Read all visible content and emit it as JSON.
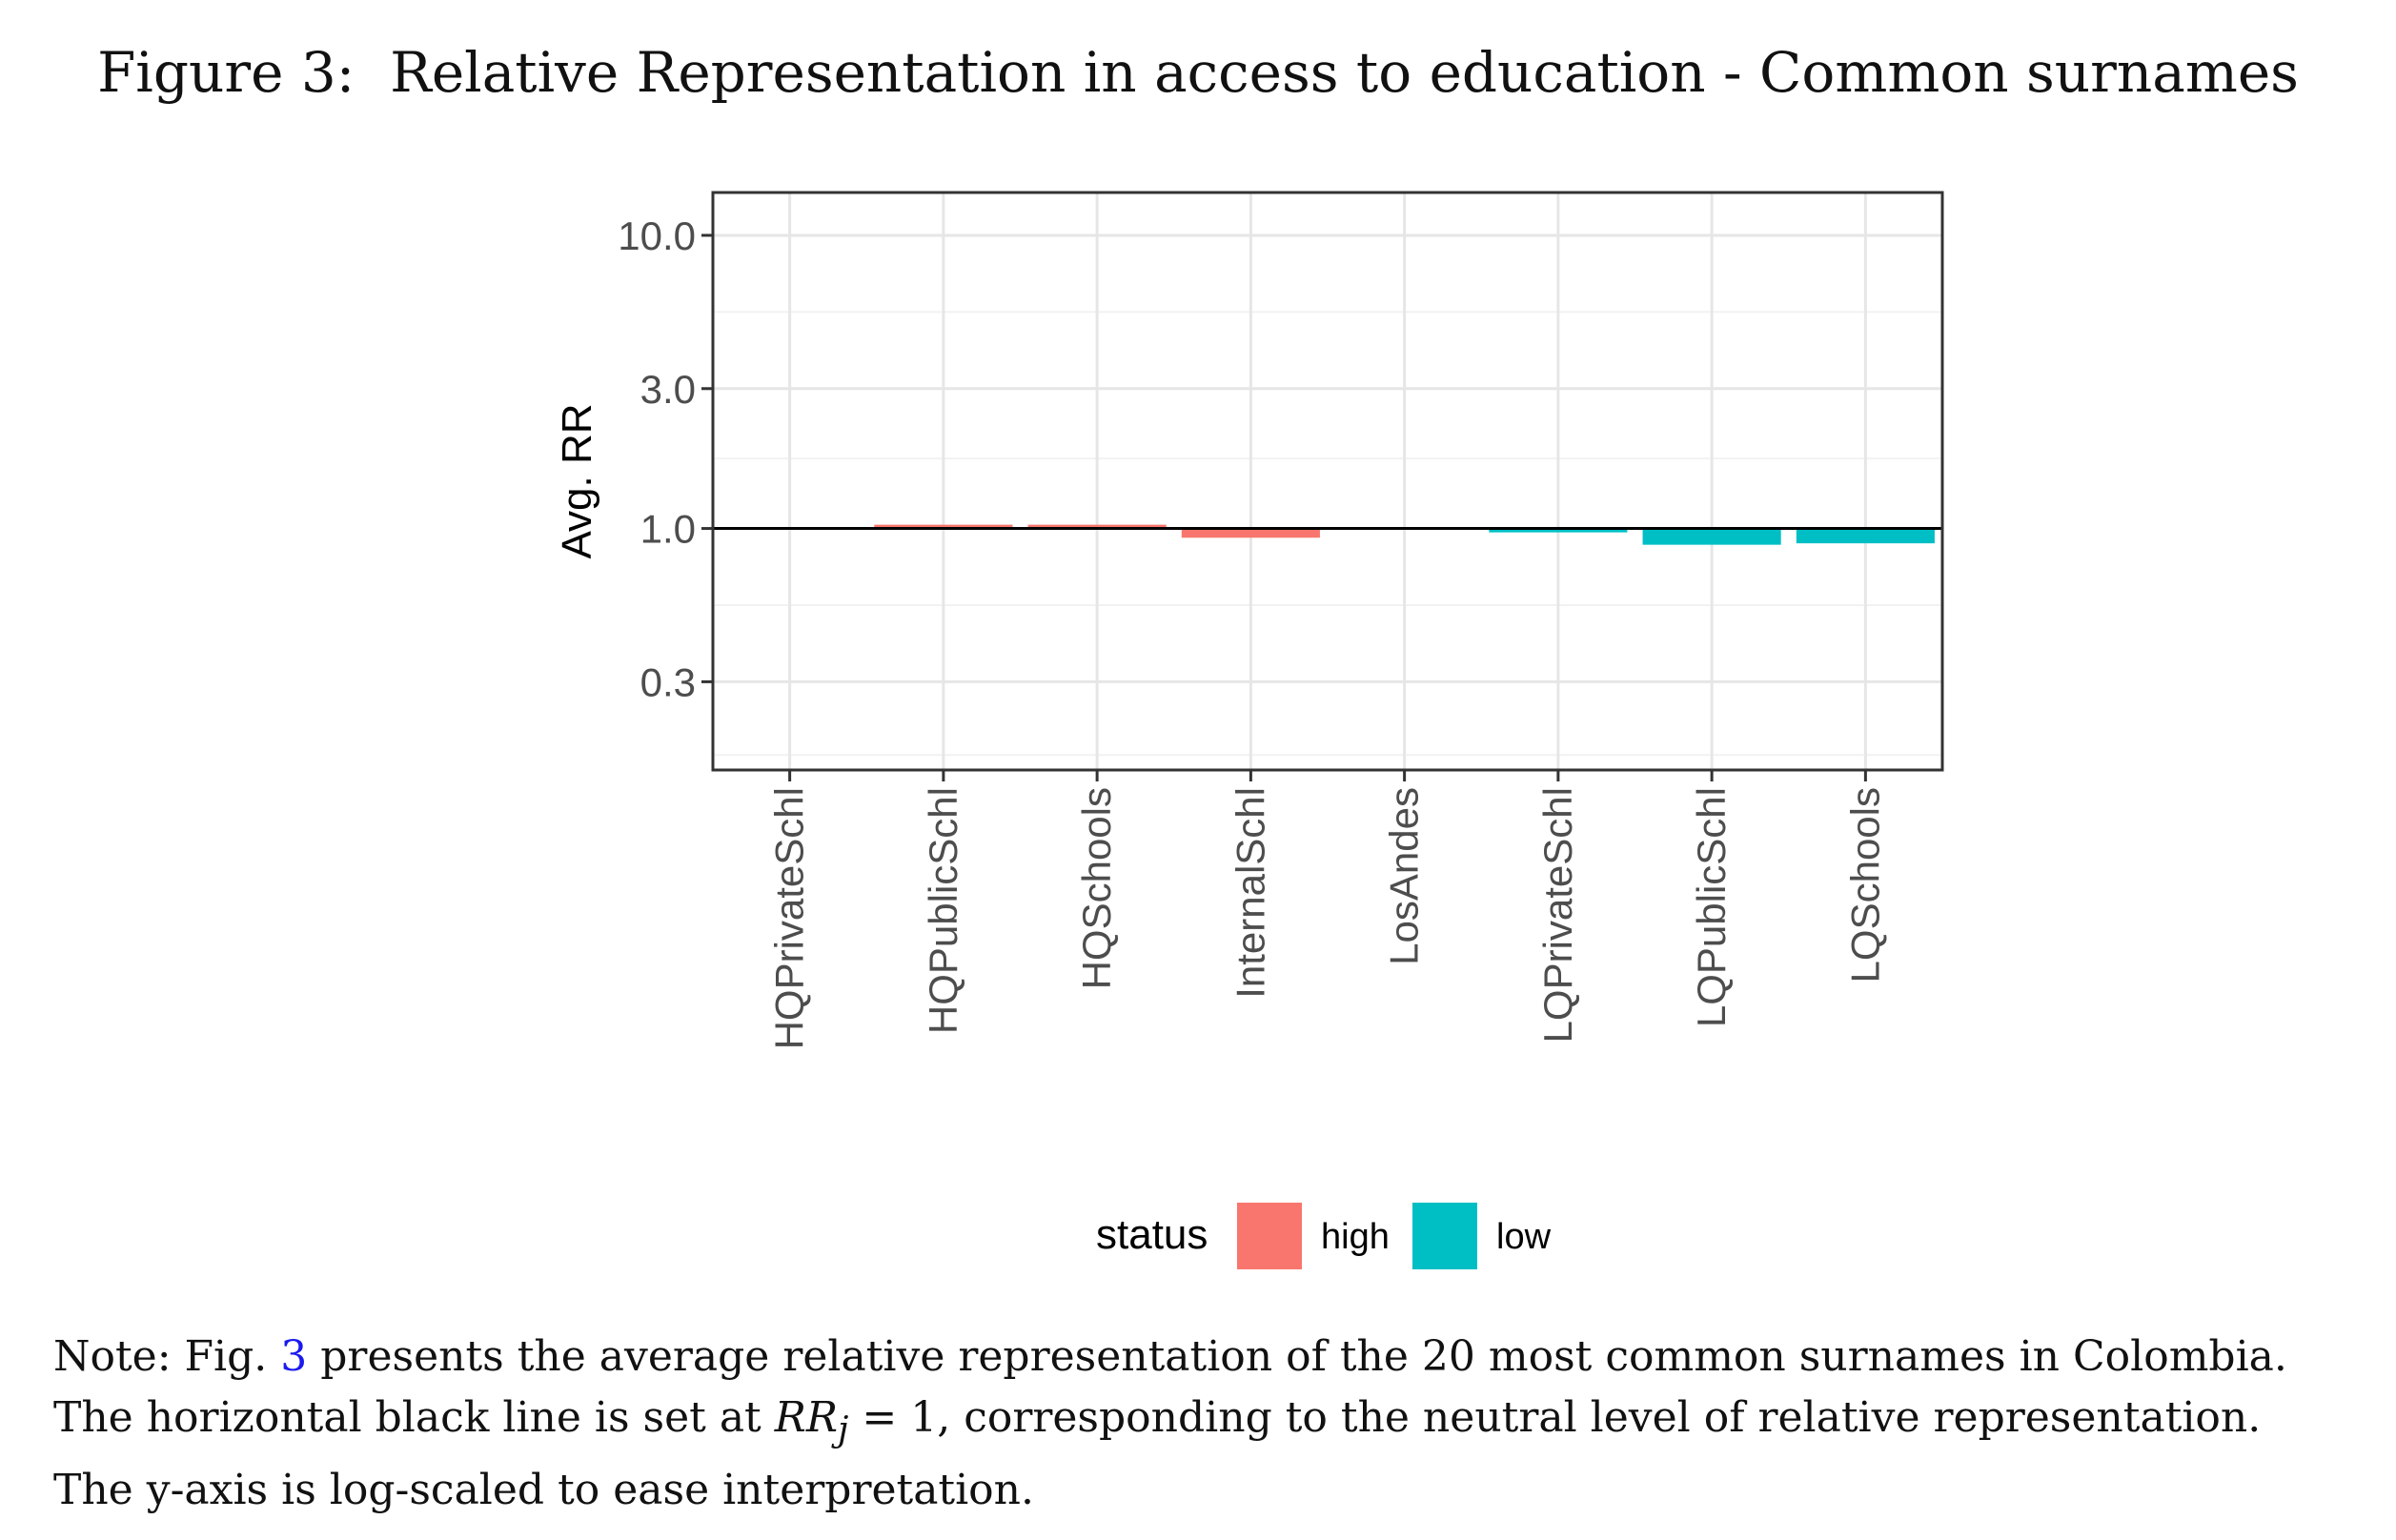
{
  "caption": {
    "label": "Figure 3:",
    "title": "Relative Representation in access to education - Common surnames"
  },
  "chart_data": {
    "type": "bar",
    "categories": [
      "HQPrivateSchl",
      "HQPublicSchl",
      "HQSchools",
      "InternalSchl",
      "LosAndes",
      "LQPrivateSchl",
      "LQPublicSchl",
      "LQSchools"
    ],
    "values": [
      1.0,
      1.03,
      1.03,
      0.93,
      1.0,
      0.97,
      0.88,
      0.89
    ],
    "status": [
      "high",
      "high",
      "high",
      "high",
      "high",
      "low",
      "low",
      "low"
    ],
    "ylabel": "Avg. RR",
    "y_scale": "log",
    "ylim": [
      0.15,
      14.0
    ],
    "yticks": [
      0.3,
      1.0,
      3.0,
      10.0
    ],
    "ytick_labels": [
      "0.3",
      "1.0",
      "3.0",
      "10.0"
    ],
    "reference_line": 1.0,
    "grid": true,
    "legend": {
      "title": "status",
      "position": "bottom",
      "entries": [
        {
          "label": "high",
          "color": "#F8766D"
        },
        {
          "label": "low",
          "color": "#00BFC4"
        }
      ]
    }
  },
  "note": {
    "line1_before": "Note: Fig. ",
    "line1_ref": "3",
    "line1_after": " presents the average relative representation of the 20 most common surnames in Colombia.",
    "line2_before": "The horizontal black line is set at ",
    "line2_math_var": "RR",
    "line2_math_sub": "j",
    "line2_math_rest": " = 1",
    "line2_after": ", corresponding to the neutral level of relative representation.",
    "line3": "The y-axis is log-scaled to ease interpretation."
  }
}
